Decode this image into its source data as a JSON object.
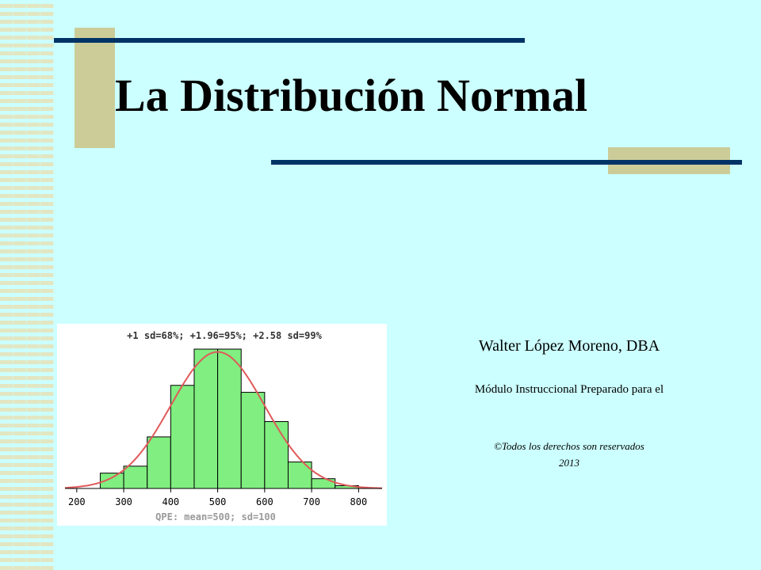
{
  "slide": {
    "title": "La Distribución Normal",
    "author": "Walter López Moreno, DBA",
    "module_line": "Módulo Instruccional Preparado para el",
    "copyright": "©Todos los derechos son reservados",
    "year": "2013"
  },
  "colors": {
    "background": "#ccffff",
    "accent_line": "#003366",
    "accent_block": "#cccc99",
    "bar_fill": "#80ee80",
    "curve": "#e05a5a"
  },
  "chart_data": {
    "type": "bar",
    "title": "+1 sd=68%; +1.96=95%; +2.58 sd=99%",
    "xlabel": "QPE: mean=500; sd=100",
    "ylabel": "",
    "x_ticks": [
      200,
      300,
      400,
      500,
      600,
      700,
      800
    ],
    "xlim": [
      175,
      850
    ],
    "ylim": [
      0,
      1
    ],
    "bin_width": 50,
    "bins": [
      {
        "from": 250,
        "to": 300,
        "value": 0.11
      },
      {
        "from": 300,
        "to": 350,
        "value": 0.16
      },
      {
        "from": 350,
        "to": 400,
        "value": 0.37
      },
      {
        "from": 400,
        "to": 450,
        "value": 0.74
      },
      {
        "from": 450,
        "to": 500,
        "value": 1.0
      },
      {
        "from": 500,
        "to": 550,
        "value": 1.0
      },
      {
        "from": 550,
        "to": 600,
        "value": 0.69
      },
      {
        "from": 600,
        "to": 650,
        "value": 0.48
      },
      {
        "from": 650,
        "to": 700,
        "value": 0.19
      },
      {
        "from": 700,
        "to": 750,
        "value": 0.07
      },
      {
        "from": 750,
        "to": 800,
        "value": 0.02
      }
    ],
    "curve": {
      "mean": 500,
      "sd": 100,
      "peak": 0.98
    },
    "grid": false
  }
}
